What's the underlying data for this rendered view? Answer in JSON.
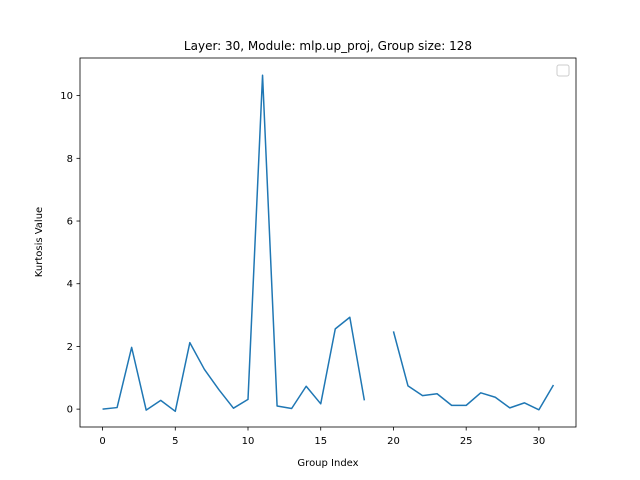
{
  "chart_data": {
    "type": "line",
    "title": "Layer: 30, Module: mlp.up_proj,  Group size: 128",
    "xlabel": "Group Index",
    "ylabel": "Kurtosis Value",
    "xlim": [
      -1.55,
      32.55
    ],
    "ylim": [
      -0.57,
      11.2
    ],
    "xticks": [
      0,
      5,
      10,
      15,
      20,
      25,
      30
    ],
    "yticks": [
      0,
      2,
      4,
      6,
      8,
      10
    ],
    "grid": false,
    "legend": "top-right (empty)",
    "series": [
      {
        "color": "#1f77b4",
        "x": [
          0,
          1,
          2,
          3,
          4,
          5,
          6,
          7,
          8,
          9,
          10,
          11,
          12,
          13,
          14,
          15,
          16,
          17,
          18,
          19,
          20,
          21,
          22,
          23,
          24,
          25,
          26,
          27,
          28,
          29,
          30,
          31
        ],
        "y": [
          0.0,
          0.05,
          1.97,
          -0.03,
          0.28,
          -0.07,
          2.12,
          1.27,
          0.62,
          0.03,
          0.31,
          10.65,
          0.1,
          0.02,
          0.73,
          0.17,
          2.56,
          2.93,
          0.28,
          null,
          2.48,
          0.74,
          0.43,
          0.49,
          0.12,
          0.12,
          0.52,
          0.38,
          0.04,
          0.2,
          -0.02,
          0.77
        ]
      }
    ]
  }
}
